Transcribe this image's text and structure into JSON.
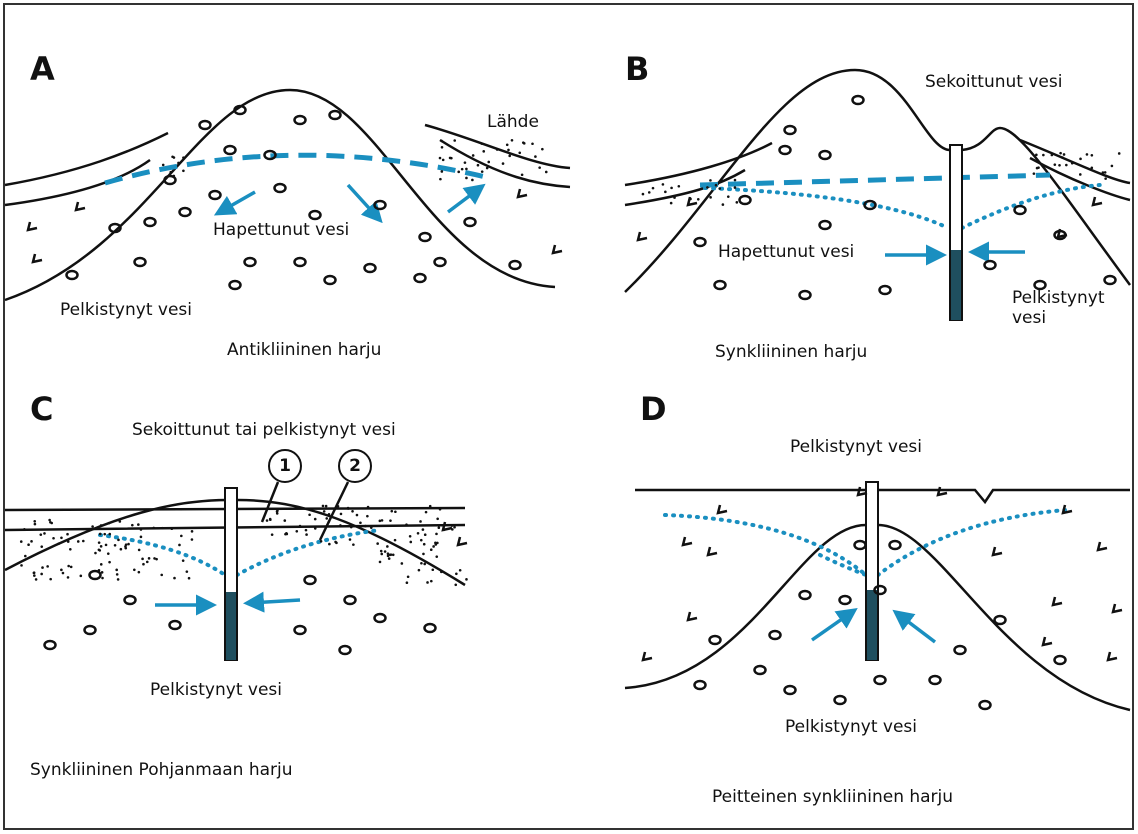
{
  "panels": [
    {
      "letter": "A",
      "labels": [
        "Lähde",
        "Hapettunut vesi",
        "Pelkistynyt vesi"
      ],
      "caption": "Antikliininen harju"
    },
    {
      "letter": "B",
      "labels": [
        "Sekoittunut vesi",
        "Hapettunut vesi",
        "Pelkistynyt vesi"
      ],
      "caption": "Synkliininen harju"
    },
    {
      "letter": "C",
      "labels": [
        "Sekoittunut tai pelkistynyt vesi",
        "1",
        "2",
        "Pelkistynyt vesi"
      ],
      "caption": "Synkliininen Pohjanmaan harju"
    },
    {
      "letter": "D",
      "labels": [
        "Pelkistynyt vesi",
        "Pelkistynyt vesi"
      ],
      "caption": "Peitteinen synkliininen harju"
    }
  ]
}
